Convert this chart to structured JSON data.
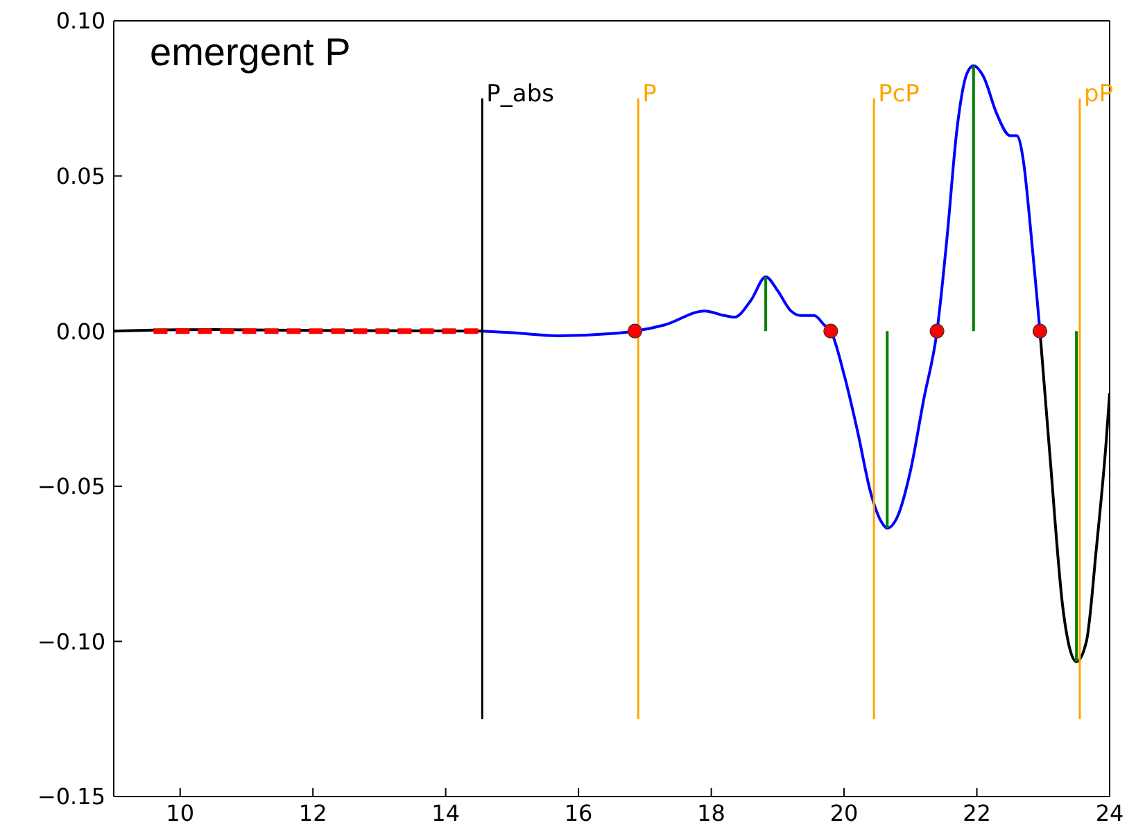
{
  "chart_data": {
    "type": "line",
    "title": "emergent P",
    "xlim": [
      9,
      24
    ],
    "xticks": [
      10,
      12,
      14,
      16,
      18,
      20,
      22,
      24
    ],
    "ylim": [
      -0.15,
      0.1
    ],
    "yticks": [
      {
        "value": -0.15,
        "label": "−0.15"
      },
      {
        "value": -0.1,
        "label": "−0.10"
      },
      {
        "value": -0.05,
        "label": "−0.05"
      },
      {
        "value": 0,
        "label": "0.00"
      },
      {
        "value": 0.05,
        "label": "0.05"
      },
      {
        "value": 0.1,
        "label": "0.10"
      }
    ],
    "grid": false,
    "legend": false,
    "series": [
      {
        "color": "#000000",
        "x": [
          9,
          9.6,
          10.5,
          12,
          13.5,
          14.55,
          14.6,
          22.95,
          23.1,
          23.3,
          23.5,
          23.65,
          23.8,
          23.95,
          24
        ],
        "values": [
          0,
          0.0003,
          0.0005,
          0.0002,
          0.0001,
          0,
          null,
          0,
          -0.04,
          -0.09,
          -0.1065,
          -0.1,
          -0.07,
          -0.035,
          -0.02
        ]
      },
      {
        "color": "#0000ff",
        "x": [
          14.55,
          15,
          15.7,
          16.5,
          16.85,
          17.3,
          17.9,
          18.2,
          18.35,
          18.6,
          18.82,
          19,
          19.2,
          19.35,
          19.55,
          19.7,
          19.8,
          20,
          20.2,
          20.4,
          20.55,
          20.65,
          20.8,
          21,
          21.2,
          21.4,
          21.55,
          21.7,
          21.85,
          21.95,
          22.1,
          22.3,
          22.5,
          22.6,
          22.7,
          22.8,
          22.9,
          22.95
        ],
        "values": [
          0,
          -0.0005,
          -0.0015,
          -0.0008,
          0,
          0.002,
          0.0065,
          0.005,
          0.0045,
          0.01,
          0.0175,
          0.013,
          0.0065,
          0.005,
          0.005,
          0.002,
          0,
          -0.014,
          -0.032,
          -0.052,
          -0.061,
          -0.0635,
          -0.06,
          -0.045,
          -0.022,
          0,
          0.03,
          0.065,
          0.083,
          0.0855,
          0.082,
          0.07,
          0.063,
          0.063,
          0.055,
          0.035,
          0.012,
          0
        ]
      },
      {
        "color": "#ff0000",
        "line_style": "dashed",
        "x": [
          9.6,
          14.55
        ],
        "values": [
          0,
          0
        ]
      },
      {
        "name": "P_abs",
        "color": "#000000",
        "x": [
          14.55,
          14.55
        ],
        "values": [
          0.075,
          -0.125
        ]
      },
      {
        "name": "P",
        "color": "#ffa500",
        "x": [
          16.9,
          16.9
        ],
        "values": [
          0.075,
          -0.125
        ]
      },
      {
        "name": "PcP",
        "color": "#ffa500",
        "x": [
          20.45,
          20.45
        ],
        "values": [
          0.075,
          -0.125
        ]
      },
      {
        "name": "pP",
        "color": "#ffa500",
        "x": [
          23.55,
          23.55
        ],
        "values": [
          0.075,
          -0.125
        ]
      },
      {
        "color": "#008000",
        "x": [
          18.82,
          18.82
        ],
        "values": [
          0,
          0.0175
        ]
      },
      {
        "color": "#008000",
        "x": [
          20.65,
          20.65
        ],
        "values": [
          0,
          -0.0635
        ]
      },
      {
        "color": "#008000",
        "x": [
          21.95,
          21.95
        ],
        "values": [
          0,
          0.0855
        ]
      },
      {
        "color": "#008000",
        "x": [
          23.5,
          23.5
        ],
        "values": [
          0,
          -0.1065
        ]
      },
      {
        "type": "scatter",
        "color": "#ff0000",
        "marker": "circle",
        "x": [
          16.85,
          19.8,
          21.4,
          22.95
        ],
        "values": [
          0,
          0,
          0,
          0
        ]
      }
    ]
  }
}
